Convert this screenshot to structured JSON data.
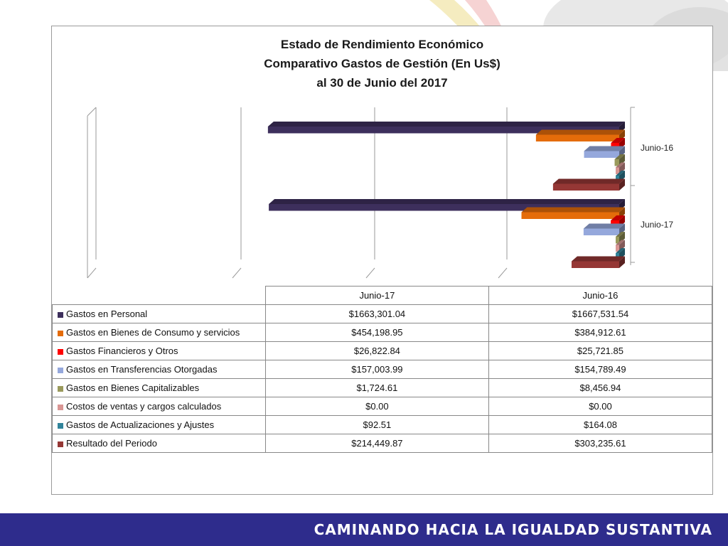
{
  "chart_data": {
    "type": "bar",
    "orientation": "horizontal",
    "stacked": true,
    "title_lines": [
      "Estado de Rendimiento Económico",
      "Comparativo Gastos de Gestión (En Us$)",
      "al 30 de Junio del 2017"
    ],
    "categories": [
      "Junio-17",
      "Junio-16"
    ],
    "series": [
      {
        "name": "Gastos en Personal",
        "color": "#3d2f5c",
        "values": [
          1663301.04,
          1667531.54
        ],
        "display": [
          "$1663,301.04",
          "$1667,531.54"
        ]
      },
      {
        "name": "Gastos en Bienes de Consumo y servicios",
        "color": "#e46c0a",
        "values": [
          454198.95,
          384912.61
        ],
        "display": [
          "$454,198.95",
          "$384,912.61"
        ]
      },
      {
        "name": "Gastos Financieros y Otros",
        "color": "#ff0000",
        "values": [
          26822.84,
          25721.85
        ],
        "display": [
          "$26,822.84",
          "$25,721.85"
        ]
      },
      {
        "name": "Gastos en Transferencias Otorgadas",
        "color": "#95a8dc",
        "values": [
          157003.99,
          154789.49
        ],
        "display": [
          "$157,003.99",
          "$154,789.49"
        ]
      },
      {
        "name": "Gastos en Bienes Capitalizables",
        "color": "#9a9a5c",
        "values": [
          1724.61,
          8456.94
        ],
        "display": [
          "$1,724.61",
          "$8,456.94"
        ]
      },
      {
        "name": "Costos de ventas y cargos calculados",
        "color": "#d99694",
        "values": [
          0.0,
          0.0
        ],
        "display": [
          "$0.00",
          "$0.00"
        ]
      },
      {
        "name": "Gastos de Actualizaciones y Ajustes",
        "color": "#31849b",
        "values": [
          92.51,
          164.08
        ],
        "display": [
          "$92.51",
          "$164.08"
        ]
      },
      {
        "name": "Resultado del Periodo",
        "color": "#953735",
        "values": [
          214449.87,
          303235.61
        ],
        "display": [
          "$214,449.87",
          "$303,235.61"
        ]
      }
    ],
    "grid": true,
    "legend": "data-table"
  },
  "footer": {
    "slogan": "CAMINANDO HACIA LA IGUALDAD SUSTANTIVA",
    "color": "#2e2c8c"
  }
}
